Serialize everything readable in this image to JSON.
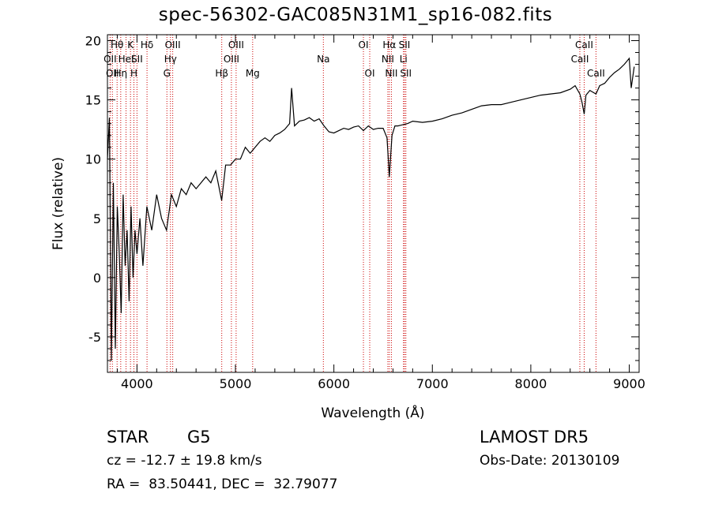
{
  "chart_data": {
    "type": "line",
    "title": "spec-56302-GAC085N31M1_sp16-082.fits",
    "xlabel": "Wavelength (Å)",
    "ylabel": "Flux (relative)",
    "xlim": [
      3700,
      9100
    ],
    "ylim": [
      -8,
      20.5
    ],
    "xticks": [
      4000,
      5000,
      6000,
      7000,
      8000,
      9000
    ],
    "yticks": [
      -5,
      0,
      5,
      10,
      15,
      20
    ],
    "grid": false,
    "series": [
      {
        "x": [
          3700,
          3720,
          3740,
          3760,
          3780,
          3800,
          3820,
          3840,
          3860,
          3880,
          3900,
          3920,
          3940,
          3960,
          3980,
          4000,
          4030,
          4060,
          4100,
          4150,
          4200,
          4250,
          4300,
          4350,
          4400,
          4450,
          4500,
          4550,
          4600,
          4650,
          4700,
          4750,
          4800,
          4860,
          4900,
          4950,
          5000,
          5050,
          5100,
          5150,
          5200,
          5250,
          5300,
          5350,
          5400,
          5450,
          5500,
          5550,
          5570,
          5600,
          5650,
          5700,
          5750,
          5800,
          5850,
          5900,
          5950,
          6000,
          6050,
          6100,
          6150,
          6200,
          6250,
          6300,
          6350,
          6400,
          6450,
          6500,
          6540,
          6563,
          6590,
          6620,
          6650,
          6700,
          6750,
          6800,
          6900,
          7000,
          7100,
          7200,
          7300,
          7400,
          7500,
          7600,
          7700,
          7800,
          7900,
          8000,
          8100,
          8200,
          8300,
          8400,
          8450,
          8498,
          8520,
          8542,
          8560,
          8600,
          8662,
          8700,
          8750,
          8800,
          8850,
          8900,
          8950,
          9000,
          9020,
          9050
        ],
        "y": [
          10,
          13.5,
          -7,
          8,
          -6,
          6,
          2,
          -3,
          7,
          1,
          4,
          -2,
          6,
          0,
          4,
          2,
          5,
          1,
          6,
          4,
          7,
          5,
          4,
          7,
          6,
          7.5,
          7,
          8,
          7.5,
          8,
          8.5,
          8,
          9,
          6.5,
          9.5,
          9.5,
          10,
          10,
          11,
          10.5,
          11,
          11.5,
          11.8,
          11.5,
          12,
          12.2,
          12.5,
          13,
          16,
          12.8,
          13.2,
          13.3,
          13.5,
          13.2,
          13.4,
          12.8,
          12.3,
          12.2,
          12.4,
          12.6,
          12.5,
          12.7,
          12.8,
          12.4,
          12.8,
          12.5,
          12.6,
          12.6,
          11.8,
          8.5,
          12,
          12.8,
          12.8,
          12.9,
          13,
          13.2,
          13.1,
          13.2,
          13.4,
          13.7,
          13.9,
          14.2,
          14.5,
          14.6,
          14.6,
          14.8,
          15,
          15.2,
          15.4,
          15.5,
          15.6,
          15.9,
          16.2,
          15.5,
          14.8,
          13.8,
          15.4,
          15.8,
          15.5,
          16.2,
          16.4,
          16.9,
          17.3,
          17.6,
          18,
          18.5,
          16,
          17.8
        ]
      }
    ],
    "line_marks": [
      {
        "x": 3727,
        "labels": [
          "OII"
        ],
        "rows": [
          1
        ]
      },
      {
        "x": 3750,
        "labels": [
          "OII"
        ],
        "rows": [
          2
        ]
      },
      {
        "x": 3798,
        "labels": [
          "Hθ"
        ],
        "rows": [
          0
        ]
      },
      {
        "x": 3835,
        "labels": [
          "Hη"
        ],
        "rows": [
          2
        ]
      },
      {
        "x": 3889,
        "labels": [
          "HeI"
        ],
        "rows": [
          1
        ]
      },
      {
        "x": 3934,
        "labels": [
          "K"
        ],
        "rows": [
          0
        ]
      },
      {
        "x": 3969,
        "labels": [
          "H"
        ],
        "rows": [
          2
        ]
      },
      {
        "x": 4000,
        "labels": [
          "SII"
        ],
        "rows": [
          1
        ]
      },
      {
        "x": 4102,
        "labels": [
          "Hδ"
        ],
        "rows": [
          0
        ]
      },
      {
        "x": 4304,
        "labels": [
          "G"
        ],
        "rows": [
          2
        ]
      },
      {
        "x": 4340,
        "labels": [
          "Hγ"
        ],
        "rows": [
          1
        ]
      },
      {
        "x": 4363,
        "labels": [
          "OIII"
        ],
        "rows": [
          0
        ]
      },
      {
        "x": 4861,
        "labels": [
          "Hβ"
        ],
        "rows": [
          2
        ]
      },
      {
        "x": 4959,
        "labels": [
          "OIII"
        ],
        "rows": [
          1
        ]
      },
      {
        "x": 5007,
        "labels": [
          "OIII"
        ],
        "rows": [
          0
        ]
      },
      {
        "x": 5175,
        "labels": [
          "Mg"
        ],
        "rows": [
          2
        ]
      },
      {
        "x": 5893,
        "labels": [
          "Na"
        ],
        "rows": [
          1
        ]
      },
      {
        "x": 6300,
        "labels": [
          "OI"
        ],
        "rows": [
          0
        ]
      },
      {
        "x": 6364,
        "labels": [
          "OI"
        ],
        "rows": [
          2
        ]
      },
      {
        "x": 6548,
        "labels": [
          "NII"
        ],
        "rows": [
          1
        ]
      },
      {
        "x": 6563,
        "labels": [
          "Hα"
        ],
        "rows": [
          0
        ]
      },
      {
        "x": 6584,
        "labels": [
          "NII"
        ],
        "rows": [
          2
        ]
      },
      {
        "x": 6707,
        "labels": [
          "Li"
        ],
        "rows": [
          1
        ]
      },
      {
        "x": 6717,
        "labels": [
          "SII"
        ],
        "rows": [
          0
        ]
      },
      {
        "x": 6731,
        "labels": [
          "SII"
        ],
        "rows": [
          2
        ]
      },
      {
        "x": 8498,
        "labels": [
          "CaII"
        ],
        "rows": [
          1
        ]
      },
      {
        "x": 8542,
        "labels": [
          "CaII"
        ],
        "rows": [
          0
        ]
      },
      {
        "x": 8662,
        "labels": [
          "CaII"
        ],
        "rows": [
          2
        ]
      }
    ]
  },
  "info": {
    "class": "STAR",
    "subclass": "G5",
    "survey": "LAMOST DR5",
    "cz": "cz = -12.7 ± 19.8 km/s",
    "obs_date": "Obs-Date: 20130109",
    "coords": "RA =  83.50441, DEC =  32.79077"
  },
  "colors": {
    "spectrum": "#000000",
    "line_marker": "#cc0000",
    "axes": "#000000"
  }
}
